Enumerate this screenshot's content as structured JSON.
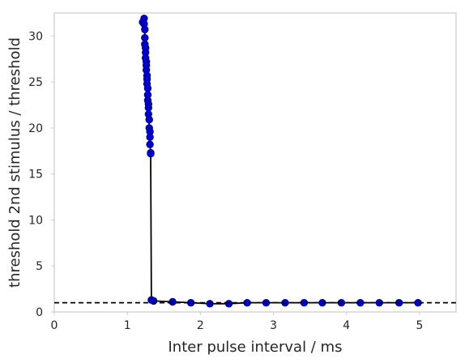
{
  "chart_data": {
    "type": "line",
    "title": "",
    "xlabel": "Inter pulse interval / ms",
    "ylabel": "threshold 2nd stimulus / threshold",
    "xlim": [
      0,
      5.5
    ],
    "ylim": [
      0,
      32.5
    ],
    "xticks": [
      0,
      1,
      2,
      3,
      4,
      5
    ],
    "yticks": [
      0,
      5,
      10,
      15,
      20,
      25,
      30
    ],
    "grid": false,
    "legend": "none",
    "series": [
      {
        "color": "#000000",
        "marker_color": "#0000cc",
        "marker_edge": "#00008b",
        "style": "line+markers",
        "x": [
          1.21,
          1.23,
          1.23,
          1.24,
          1.24,
          1.24,
          1.25,
          1.25,
          1.25,
          1.26,
          1.26,
          1.26,
          1.27,
          1.27,
          1.27,
          1.28,
          1.28,
          1.28,
          1.29,
          1.29,
          1.29,
          1.3,
          1.3,
          1.31,
          1.31,
          1.31,
          1.32,
          1.32,
          1.33,
          1.36,
          1.62,
          1.87,
          2.13,
          2.39,
          2.64,
          2.9,
          3.16,
          3.42,
          3.67,
          3.93,
          4.19,
          4.45,
          4.72,
          4.98
        ],
        "y": [
          31.5,
          31.9,
          31.3,
          30.7,
          29.8,
          29.1,
          28.7,
          28.2,
          27.6,
          27.2,
          26.8,
          26.3,
          25.7,
          25.3,
          24.8,
          24.3,
          23.6,
          23.0,
          22.6,
          22.2,
          21.5,
          20.9,
          20.0,
          19.6,
          19.0,
          18.2,
          17.3,
          17.2,
          1.3,
          1.2,
          1.1,
          1.0,
          0.9,
          0.9,
          1.0,
          1.0,
          1.0,
          1.0,
          1.0,
          1.0,
          1.0,
          1.0,
          1.0,
          1.0
        ]
      },
      {
        "color": "#000000",
        "style": "dashed",
        "x": [
          0,
          5.5
        ],
        "y": [
          1.0,
          1.0
        ]
      }
    ]
  }
}
